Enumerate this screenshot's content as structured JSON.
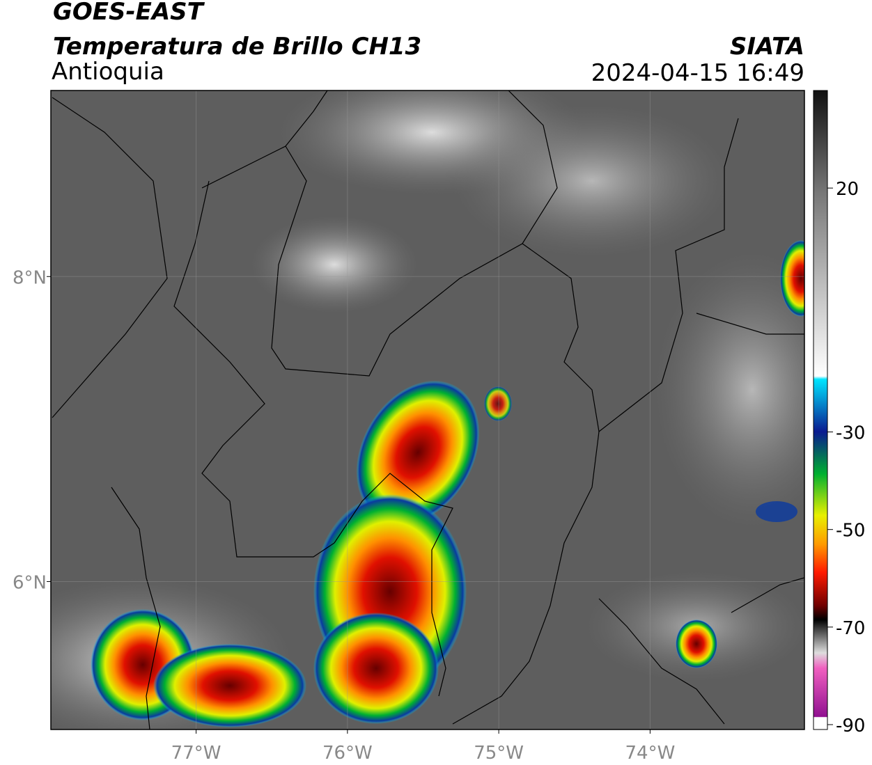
{
  "header": {
    "title": "GOES-EAST",
    "subtitle": "Temperatura de Brillo CH13",
    "region": "Antioquia",
    "source": "SIATA",
    "datetime": "2024-04-15 16:49"
  },
  "map": {
    "xlim": [
      -77.96,
      -72.98
    ],
    "ylim": [
      5.03,
      9.22
    ],
    "xticks": [
      {
        "value": -77,
        "label": "77°W"
      },
      {
        "value": -76,
        "label": "76°W"
      },
      {
        "value": -75,
        "label": "75°W"
      },
      {
        "value": -74,
        "label": "74°W"
      }
    ],
    "yticks": [
      {
        "value": 6,
        "label": "6°N"
      },
      {
        "value": 8,
        "label": "8°N"
      }
    ],
    "grid": true
  },
  "colorbar": {
    "clim": [
      -91,
      40
    ],
    "ticks": [
      20,
      -30,
      -50,
      -70,
      -90
    ]
  }
}
